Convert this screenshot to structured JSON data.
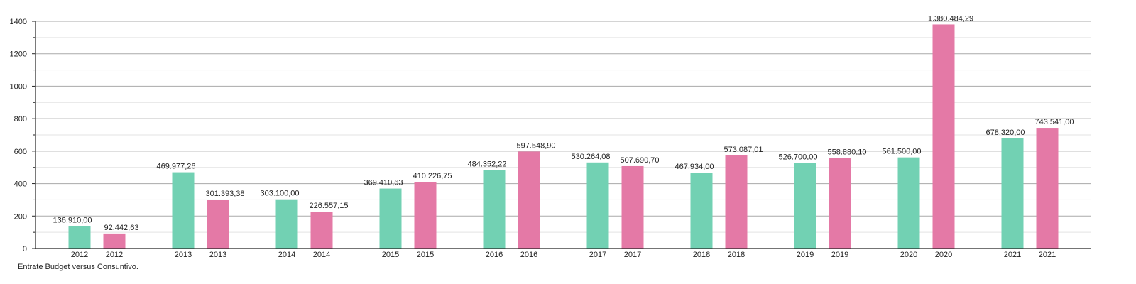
{
  "chart_data": {
    "type": "bar",
    "title": "",
    "caption": "Entrate Budget versus Consuntivo.",
    "xlabel": "",
    "ylabel": "",
    "ylim": [
      0,
      1400
    ],
    "y_ticks": [
      0,
      200,
      400,
      600,
      800,
      1000,
      1200,
      1400
    ],
    "y_unit_divisor": 1000,
    "grid": true,
    "legend": "none",
    "categories": [
      "2012",
      "2013",
      "2014",
      "2015",
      "2016",
      "2017",
      "2018",
      "2019",
      "2020",
      "2021"
    ],
    "series": [
      {
        "color": "#72d1b3",
        "values": [
          136910.0,
          469977.26,
          303100.0,
          369410.63,
          484352.22,
          530264.08,
          467934.0,
          526700.0,
          561500.0,
          678320.0
        ],
        "labels": [
          "136.910,00",
          "469.977,26",
          "303.100,00",
          "369.410,63",
          "484.352,22",
          "530.264,08",
          "467.934,00",
          "526.700,00",
          "561.500,00",
          "678.320,00"
        ]
      },
      {
        "color": "#e479a6",
        "values": [
          92442.63,
          301393.38,
          226557.15,
          410226.75,
          597548.9,
          507690.7,
          573087.01,
          558880.1,
          1380484.29,
          743541.0
        ],
        "labels": [
          "92.442,63",
          "301.393,38",
          "226.557,15",
          "410.226,75",
          "597.548,90",
          "507.690,70",
          "573.087,01",
          "558.880,10",
          "1.380.484,29",
          "743.541,00"
        ]
      }
    ]
  }
}
